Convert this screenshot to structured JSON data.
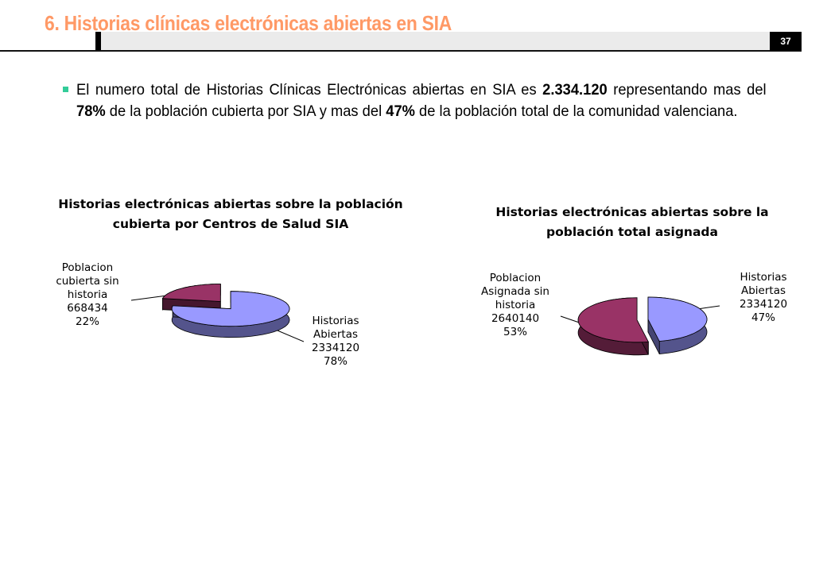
{
  "header": {
    "title": "6. Historias clínicas electrónicas abiertas en SIA",
    "page_number": "37"
  },
  "body": {
    "p1": "El numero total de Historias Clínicas Electrónicas abiertas en SIA es ",
    "total": "2.334.120",
    "p2": " representando mas del ",
    "pct_cubierta": "78%",
    "p3": " de la población cubierta por SIA y mas del ",
    "pct_total": "47%",
    "p4": " de la población total de la comunidad valenciana."
  },
  "chart_data": [
    {
      "type": "pie",
      "title_line1": "Historias electrónicas abiertas sobre la población",
      "title_line2": "cubierta por Centros de Salud SIA",
      "slices": [
        {
          "name_lines": [
            "Poblacion",
            "cubierta sin",
            "historia"
          ],
          "value": 668434,
          "value_label": "668434",
          "percent": "22%",
          "color": "#993366"
        },
        {
          "name_lines": [
            "Historias",
            "Abiertas"
          ],
          "value": 2334120,
          "value_label": "2334120",
          "percent": "78%",
          "color": "#9999ff"
        }
      ]
    },
    {
      "type": "pie",
      "title_line1": "Historias electrónicas abiertas sobre  la",
      "title_line2": "población total asignada",
      "slices": [
        {
          "name_lines": [
            "Poblacion",
            "Asignada sin",
            "historia"
          ],
          "value": 2640140,
          "value_label": "2640140",
          "percent": "53%",
          "color": "#993366"
        },
        {
          "name_lines": [
            "Historias",
            "Abiertas"
          ],
          "value": 2334120,
          "value_label": "2334120",
          "percent": "47%",
          "color": "#9999ff"
        }
      ]
    }
  ]
}
